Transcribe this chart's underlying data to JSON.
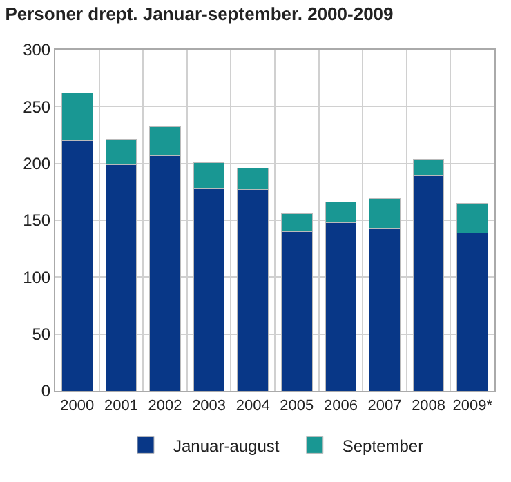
{
  "chart_data": {
    "type": "bar",
    "title": "Personer drept. Januar-september. 2000-2009",
    "stacked": true,
    "categories": [
      "2000",
      "2001",
      "2002",
      "2003",
      "2004",
      "2005",
      "2006",
      "2007",
      "2008",
      "2009*"
    ],
    "series": [
      {
        "name": "Januar-august",
        "color": "#083787",
        "values": [
          220,
          199,
          207,
          178,
          177,
          140,
          148,
          143,
          189,
          139
        ]
      },
      {
        "name": "September",
        "color": "#199793",
        "values": [
          42,
          22,
          25,
          23,
          19,
          16,
          18,
          26,
          15,
          26
        ]
      }
    ],
    "ylim": [
      0,
      300
    ],
    "yticks": [
      0,
      50,
      100,
      150,
      200,
      250,
      300
    ],
    "grid": true,
    "legend": "bottom"
  }
}
